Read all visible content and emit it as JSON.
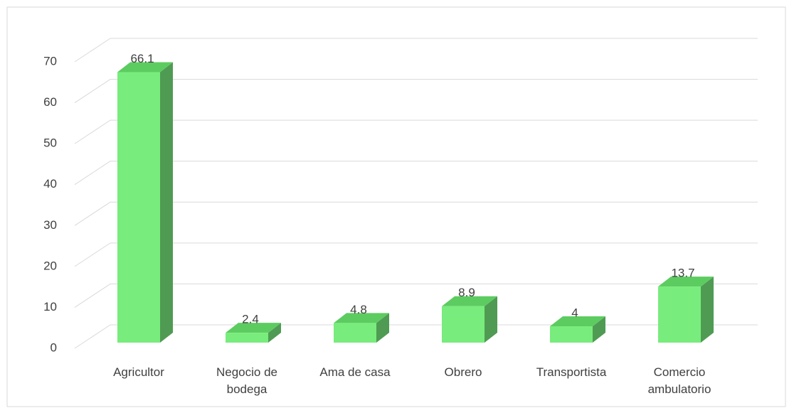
{
  "chart_data": {
    "type": "bar3d",
    "categories": [
      "Agricultor",
      "Negocio de bodega",
      "Ama de casa",
      "Obrero",
      "Transportista",
      "Comercio ambulatorio"
    ],
    "values": [
      66.1,
      2.4,
      4.8,
      8.9,
      4,
      13.7
    ],
    "color": "#78ec7c",
    "ylim": [
      0,
      70
    ],
    "yticks": [
      0,
      10,
      20,
      30,
      40,
      50,
      60,
      70
    ],
    "grid": true
  }
}
